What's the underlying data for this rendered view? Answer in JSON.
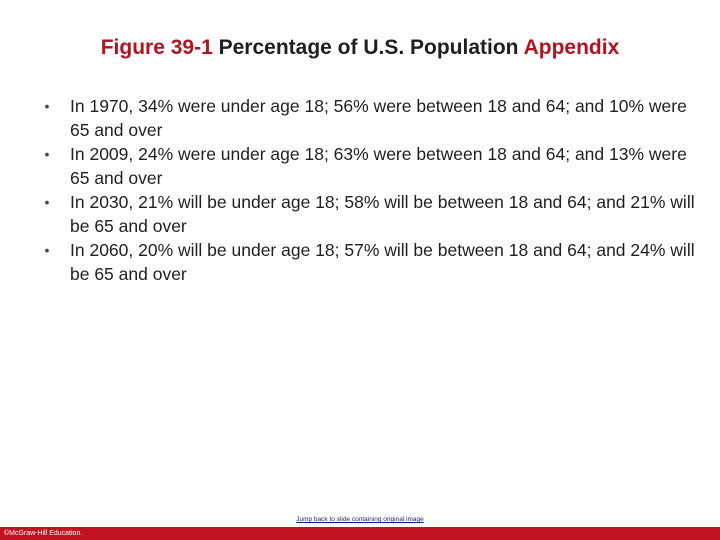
{
  "slide": {
    "title": {
      "figure_label": "Figure 39-1",
      "main_text": "Percentage of U.S. Population",
      "suffix": "Appendix"
    },
    "bullets": [
      "In 1970, 34% were under age 18; 56% were between 18 and 64; and 10% were 65 and over",
      "In 2009, 24% were under age 18; 63% were between 18 and 64; and 13% were 65 and over",
      "In 2030, 21% will be under age 18; 58% will be between 18 and 64; and 21% will be 65 and over",
      "In 2060, 20% will be under age 18; 57% will be between 18 and 64; and 24% will be 65 and over"
    ],
    "bullet_glyph": "•",
    "jump_link": "Jump back to slide containing original image",
    "copyright": "©McGraw-Hill Education."
  },
  "colors": {
    "accent": "#b3121f",
    "footer_bar": "#c0131f",
    "text": "#1f1f1f"
  }
}
